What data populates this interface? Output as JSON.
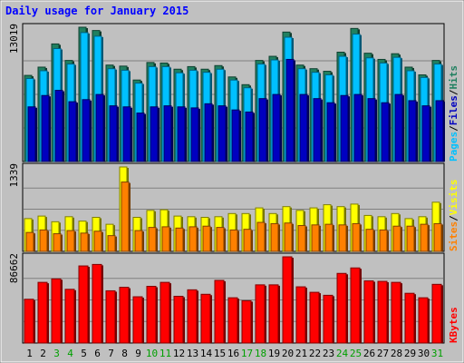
{
  "chart_data": {
    "type": "bar",
    "title": "Daily usage for January 2015",
    "categories": [
      "1",
      "2",
      "3",
      "4",
      "5",
      "6",
      "7",
      "8",
      "9",
      "10",
      "11",
      "12",
      "13",
      "14",
      "15",
      "16",
      "17",
      "18",
      "19",
      "20",
      "21",
      "22",
      "23",
      "24",
      "25",
      "26",
      "27",
      "28",
      "29",
      "30",
      "31"
    ],
    "weekend_days": [
      "3",
      "4",
      "10",
      "11",
      "17",
      "18",
      "24",
      "25",
      "31"
    ],
    "panels": [
      {
        "id": "hits",
        "max_label": "13019",
        "max": 13019,
        "side_label": [
          "Pages",
          "/",
          "Files",
          "/",
          "Hits"
        ],
        "side_colors": [
          "#00c0ff",
          "#000000",
          "#0000c0",
          "#000000",
          "#208060"
        ],
        "series": [
          {
            "name": "Hits",
            "color": "#208060",
            "values": [
              8350,
              9150,
              11400,
              9800,
              13019,
              12700,
              9350,
              9250,
              7900,
              9600,
              9550,
              8950,
              9200,
              8950,
              9300,
              8200,
              7450,
              9800,
              10200,
              12550,
              9350,
              9000,
              8750,
              10600,
              12900,
              10500,
              9900,
              10450,
              9150,
              8400,
              9800
            ]
          },
          {
            "name": "Files",
            "color": "#00c0ff",
            "values": [
              8050,
              8800,
              10950,
              9450,
              12500,
              12150,
              9000,
              8850,
              7600,
              9200,
              9200,
              8600,
              8850,
              8650,
              8950,
              7900,
              7150,
              9450,
              9850,
              12050,
              9000,
              8650,
              8400,
              10200,
              12350,
              10050,
              9550,
              10100,
              8800,
              8150,
              9450
            ]
          },
          {
            "name": "Pages",
            "color": "#0000c0",
            "values": [
              5300,
              6400,
              6900,
              5800,
              6000,
              6500,
              5400,
              5300,
              4700,
              5300,
              5400,
              5300,
              5200,
              5600,
              5400,
              5000,
              4800,
              6100,
              6500,
              9900,
              6500,
              6100,
              5700,
              6400,
              6500,
              6100,
              5700,
              6500,
              5900,
              5400,
              5900
            ]
          }
        ]
      },
      {
        "id": "visits",
        "max_label": "1339",
        "max": 1339,
        "side_label": [
          "Sites",
          "/",
          "Visits"
        ],
        "side_colors": [
          "#ff8000",
          "#000000",
          "#ffff00"
        ],
        "series": [
          {
            "name": "Visits",
            "color": "#ffff00",
            "values": [
              520,
              560,
              470,
              550,
              480,
              540,
              430,
              1339,
              540,
              650,
              660,
              560,
              550,
              540,
              550,
              600,
              600,
              690,
              600,
              710,
              650,
              690,
              740,
              710,
              750,
              570,
              550,
              600,
              520,
              550,
              780
            ]
          },
          {
            "name": "Sites",
            "color": "#ff8000",
            "values": [
              300,
              340,
              280,
              330,
              290,
              320,
              250,
              1100,
              330,
              380,
              390,
              370,
              390,
              400,
              380,
              340,
              350,
              460,
              440,
              450,
              410,
              420,
              430,
              420,
              440,
              350,
              340,
              400,
              400,
              430,
              440
            ]
          }
        ]
      },
      {
        "id": "kbytes",
        "max_label": "86662",
        "max": 86662,
        "side_label": [
          "KBytes"
        ],
        "side_colors": [
          "#ff0000"
        ],
        "series": [
          {
            "name": "KBytes",
            "color": "#ff0000",
            "values": [
              44000,
              61000,
              64500,
              54000,
              77500,
              79000,
              52500,
              56000,
              46500,
              57000,
              61000,
              47000,
              53500,
              49000,
              63000,
              45500,
              42500,
              58500,
              58500,
              86662,
              56500,
              51000,
              48000,
              70000,
              75500,
              62500,
              62000,
              61000,
              50000,
              45500,
              59000
            ]
          }
        ]
      }
    ]
  },
  "colors": {
    "background": "#c0c0c0",
    "title": "#0000ff",
    "weekday_label": "#000000",
    "weekend_label": "#00a000",
    "gridline": "#808080"
  }
}
